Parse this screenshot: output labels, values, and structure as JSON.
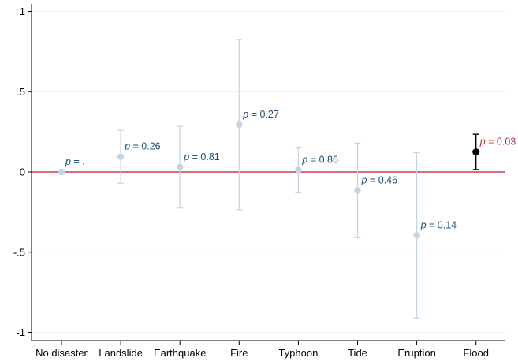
{
  "chart_data": {
    "type": "scatter",
    "title": "",
    "xlabel": "",
    "ylabel": "",
    "ylim": [
      -1,
      1
    ],
    "yticks": [
      {
        "value": 1,
        "label": "1"
      },
      {
        "value": 0.5,
        "label": ".5"
      },
      {
        "value": 0,
        "label": "0"
      },
      {
        "value": -0.5,
        "label": "-.5"
      },
      {
        "value": -1,
        "label": "-1"
      }
    ],
    "grid": "horizontal",
    "reference_line": {
      "value": 0,
      "color": "#c8102e"
    },
    "categories": [
      "No disaster",
      "Landslide",
      "Earthquake",
      "Fire",
      "Typhoon",
      "Tide",
      "Eruption",
      "Flood"
    ],
    "points": [
      {
        "category": "No disaster",
        "estimate": 0.0,
        "ci_low": 0.0,
        "ci_high": 0.0,
        "p_label": ".",
        "significant": false
      },
      {
        "category": "Landslide",
        "estimate": 0.095,
        "ci_low": -0.07,
        "ci_high": 0.26,
        "p_label": "0.26",
        "significant": false
      },
      {
        "category": "Earthquake",
        "estimate": 0.03,
        "ci_low": -0.225,
        "ci_high": 0.285,
        "p_label": "0.81",
        "significant": false
      },
      {
        "category": "Fire",
        "estimate": 0.295,
        "ci_low": -0.235,
        "ci_high": 0.825,
        "p_label": "0.27",
        "significant": false
      },
      {
        "category": "Typhoon",
        "estimate": 0.012,
        "ci_low": -0.13,
        "ci_high": 0.15,
        "p_label": "0.86",
        "significant": false
      },
      {
        "category": "Tide",
        "estimate": -0.115,
        "ci_low": -0.41,
        "ci_high": 0.18,
        "p_label": "0.46",
        "significant": false
      },
      {
        "category": "Eruption",
        "estimate": -0.395,
        "ci_low": -0.91,
        "ci_high": 0.12,
        "p_label": "0.14",
        "significant": false
      },
      {
        "category": "Flood",
        "estimate": 0.125,
        "ci_low": 0.015,
        "ci_high": 0.235,
        "p_label": "0.03",
        "significant": true
      }
    ],
    "p_prefix": "p",
    "p_equals": " = ",
    "colors": {
      "marker_default": "#c5d3e2",
      "marker_significant": "#000000",
      "label_default": "#1f4e79",
      "label_significant": "#b0303a",
      "grid": "#eeeeee",
      "axis": "#000000"
    }
  }
}
